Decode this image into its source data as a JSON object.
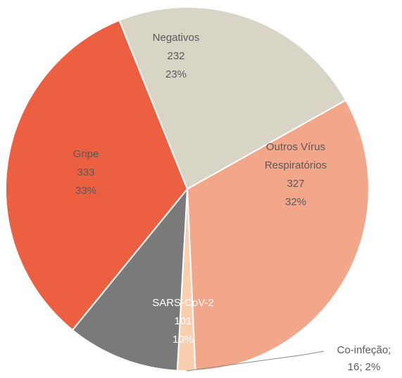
{
  "chart_data": {
    "type": "pie",
    "slices": [
      {
        "label": "Negativos",
        "value": 232,
        "percent": "23%",
        "color": "#d8d4c6",
        "label_color": "#5a5a5a"
      },
      {
        "label": "Outros Vírus",
        "label_line2": "Respiratórios",
        "value": 327,
        "percent": "32%",
        "color": "#f2a68a",
        "label_color": "#5a5a5a"
      },
      {
        "label": "Co-infeção",
        "value": 16,
        "percent": "2%",
        "color": "#f9cfb0",
        "label_color": "#5a5a5a",
        "callout": "Co-infeção;",
        "callout_line2": "16;  2%"
      },
      {
        "label": "SARS-CoV-2",
        "value": 101,
        "percent": "10%",
        "color": "#7a7a7a",
        "label_color": "#ffffff"
      },
      {
        "label": "Gripe",
        "value": 333,
        "percent": "33%",
        "color": "#ec5f41",
        "label_color": "#5a5a5a"
      }
    ]
  }
}
